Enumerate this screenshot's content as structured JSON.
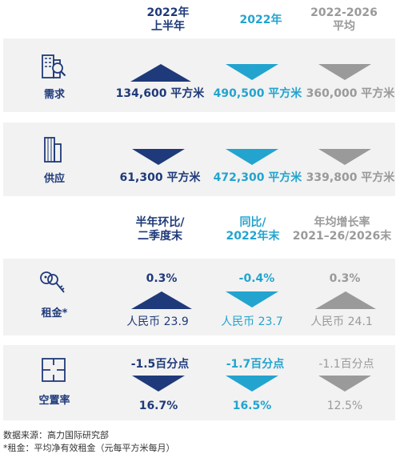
{
  "headers_top": [
    "2022年",
    "上半年",
    "2022年",
    "2022-2026",
    "平均"
  ],
  "headers_bottom": [
    "半年环比/",
    "二季度末",
    "同比/",
    "2022年末",
    "年均增长率",
    "2021–26/2026末"
  ],
  "rows": {
    "demand": {
      "label": "需求",
      "v1": "134,600 平方米",
      "v2": "490,500 平方米",
      "v3": "360,000 平方米"
    },
    "supply": {
      "label": "供应",
      "v1": "61,300 平方米",
      "v2": "472,300 平方米",
      "v3": "339,800 平方米"
    },
    "rent": {
      "label": "租金*",
      "c1": "0.3%",
      "c2": "-0.4%",
      "c3": "0.3%",
      "v1": "人民币 23.9",
      "v2": "人民币 23.7",
      "v3": "人民币 24.1"
    },
    "vacancy": {
      "label": "空置率",
      "c1": "-1.5百分点",
      "c2": "-1.7百分点",
      "c3": "-1.1百分点",
      "v1": "16.7%",
      "v2": "16.5%",
      "v3": "12.5%"
    }
  },
  "footer": {
    "source": "数据来源：高力国际研究部",
    "note": "*租金：平均净有效租金（元每平方米每月）"
  },
  "colors": {
    "navy": "#1f3a7a",
    "cyan": "#22a4cf",
    "gray": "#9a9a9a",
    "panel": "#f2f2f2"
  }
}
